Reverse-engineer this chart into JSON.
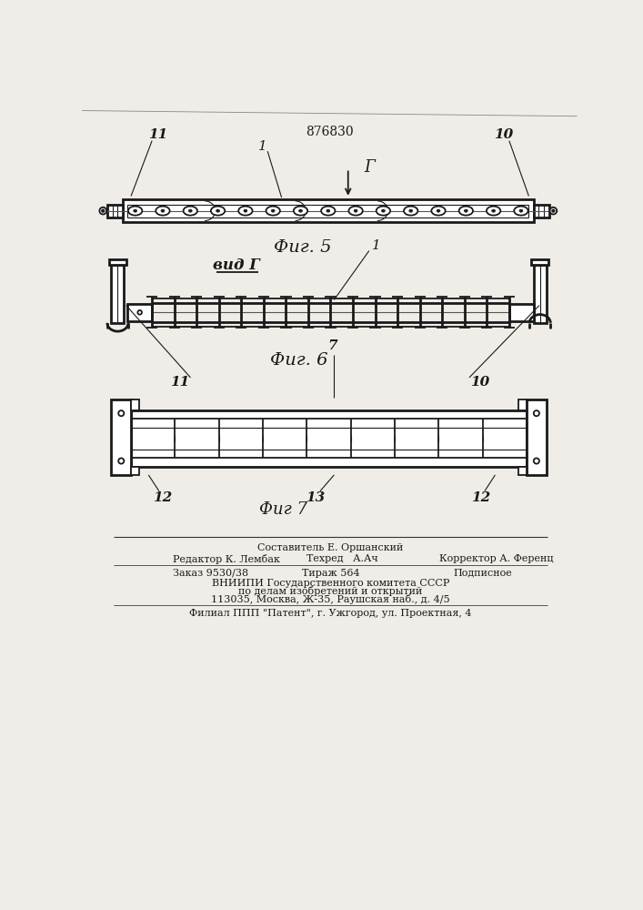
{
  "patent_number": "876830",
  "bg_color": "#f0ede8",
  "line_color": "#1a1a1a",
  "fig5_label": "Фиг. 5",
  "fig6_label": "Фиг. 6",
  "fig7_label": "Фиг 7",
  "vid_label": "вид Г",
  "footer": {
    "sestavitel": "Составитель Е. Оршанский",
    "redaktor": "Редактор К. Лембак",
    "tehred": "Техред   А.Ач",
    "korrektor": "Корректор А. Ференц",
    "zakaz": "Заказ 9530/38",
    "tirazh": "Тираж 564",
    "podpisnoe": "Подписное",
    "vniipи1": "ВНИИПИ Государственного комитета СССР",
    "vniipи2": "по делам изобретений и открытий",
    "vniipи3": "113035, Москва, Ж-35, Раушская наб., д. 4/5",
    "filial": "Филиал ППП \"Патент\", г. Ужгород, ул. Проектная, 4"
  }
}
